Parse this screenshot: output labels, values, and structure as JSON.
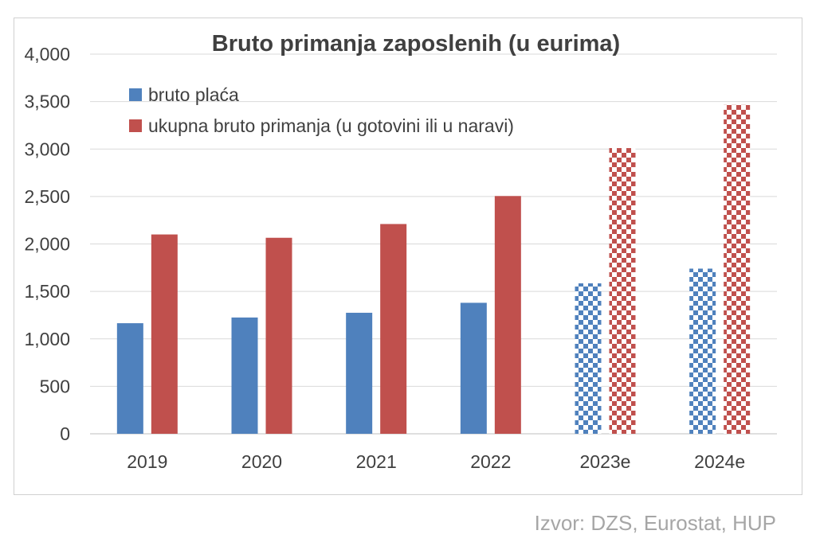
{
  "chart_data": {
    "type": "bar",
    "title": "Bruto primanja zaposlenih (u eurima)",
    "categories": [
      "2019",
      "2020",
      "2021",
      "2022",
      "2023e",
      "2024e"
    ],
    "estimated_categories": [
      "2023e",
      "2024e"
    ],
    "series": [
      {
        "name": "bruto plaća",
        "color": "#4f81bd",
        "values": [
          1165,
          1225,
          1275,
          1380,
          1585,
          1740
        ]
      },
      {
        "name": "ukupna bruto primanja (u gotovini ili u naravi)",
        "color": "#c0504d",
        "values": [
          2100,
          2065,
          2210,
          2505,
          3010,
          3465
        ]
      }
    ],
    "ylim": [
      0,
      4000
    ],
    "yticks": [
      "0",
      "500",
      "1,000",
      "1,500",
      "2,000",
      "2,500",
      "3,000",
      "3,500",
      "4,000"
    ],
    "ytick_values": [
      0,
      500,
      1000,
      1500,
      2000,
      2500,
      3000,
      3500,
      4000
    ],
    "grid": true,
    "legend_position": "top-left",
    "xlabel": "",
    "ylabel": ""
  },
  "source": "Izvor: DZS, Eurostat, HUP"
}
